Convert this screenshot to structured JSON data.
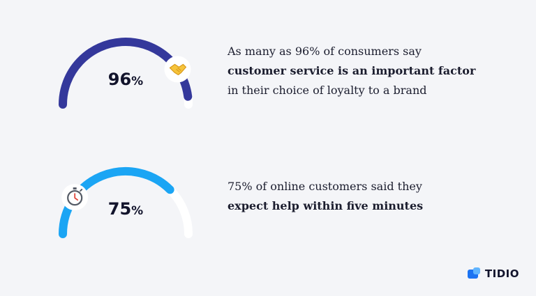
{
  "chart_data": [
    {
      "type": "gauge",
      "value": 96,
      "value_label": "96",
      "unit": "%",
      "icon": "handshake-icon",
      "color": "#34389b",
      "track_color": "#ffffff",
      "description": {
        "before": "As many as 96% of consumers say",
        "bold": "customer service is an important factor",
        "after": "in their choice of loyalty to a brand"
      }
    },
    {
      "type": "gauge",
      "value": 75,
      "value_label": "75",
      "unit": "%",
      "icon": "stopwatch-icon",
      "color": "#1ba5f4",
      "track_color": "#ffffff",
      "description": {
        "before": "75% of online customers said they",
        "bold": "expect help within five minutes",
        "after": ""
      }
    }
  ],
  "brand": {
    "name": "TIDIO",
    "color": "#1b73f2"
  }
}
